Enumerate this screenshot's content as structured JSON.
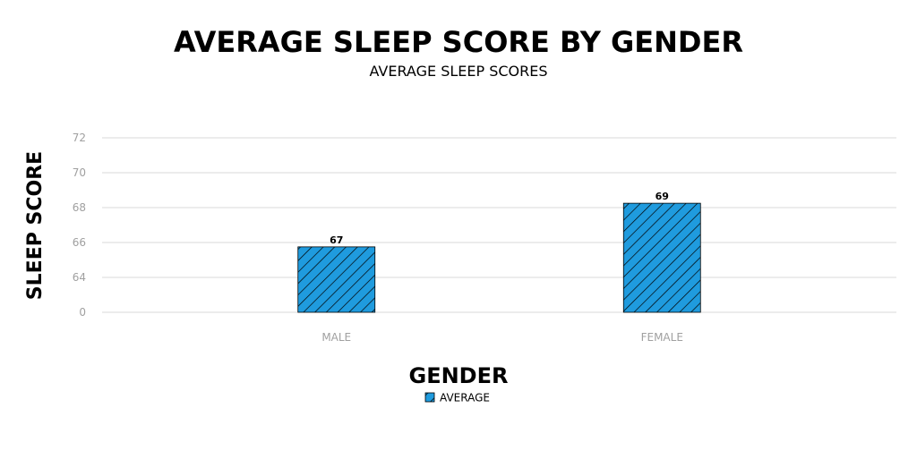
{
  "chart_data": {
    "type": "bar",
    "title": "AVERAGE SLEEP SCORE BY GENDER",
    "subtitle": "AVERAGE SLEEP SCORES",
    "xlabel": "GENDER",
    "ylabel": "SLEEP SCORE",
    "categories": [
      "MALE",
      "FEMALE"
    ],
    "series": [
      {
        "name": "AVERAGE",
        "values": [
          67,
          69
        ]
      }
    ],
    "data_labels": [
      "67",
      "69"
    ],
    "y_ticks": [
      "0",
      "64",
      "66",
      "68",
      "70",
      "72"
    ],
    "ylim": [
      64,
      72
    ],
    "y_axis_break": true,
    "grid": true,
    "legend_position": "bottom-center",
    "bar_color": "#1f9bde",
    "hatch_color": "#000000",
    "bar_pattern": "diagonal-hatch"
  }
}
